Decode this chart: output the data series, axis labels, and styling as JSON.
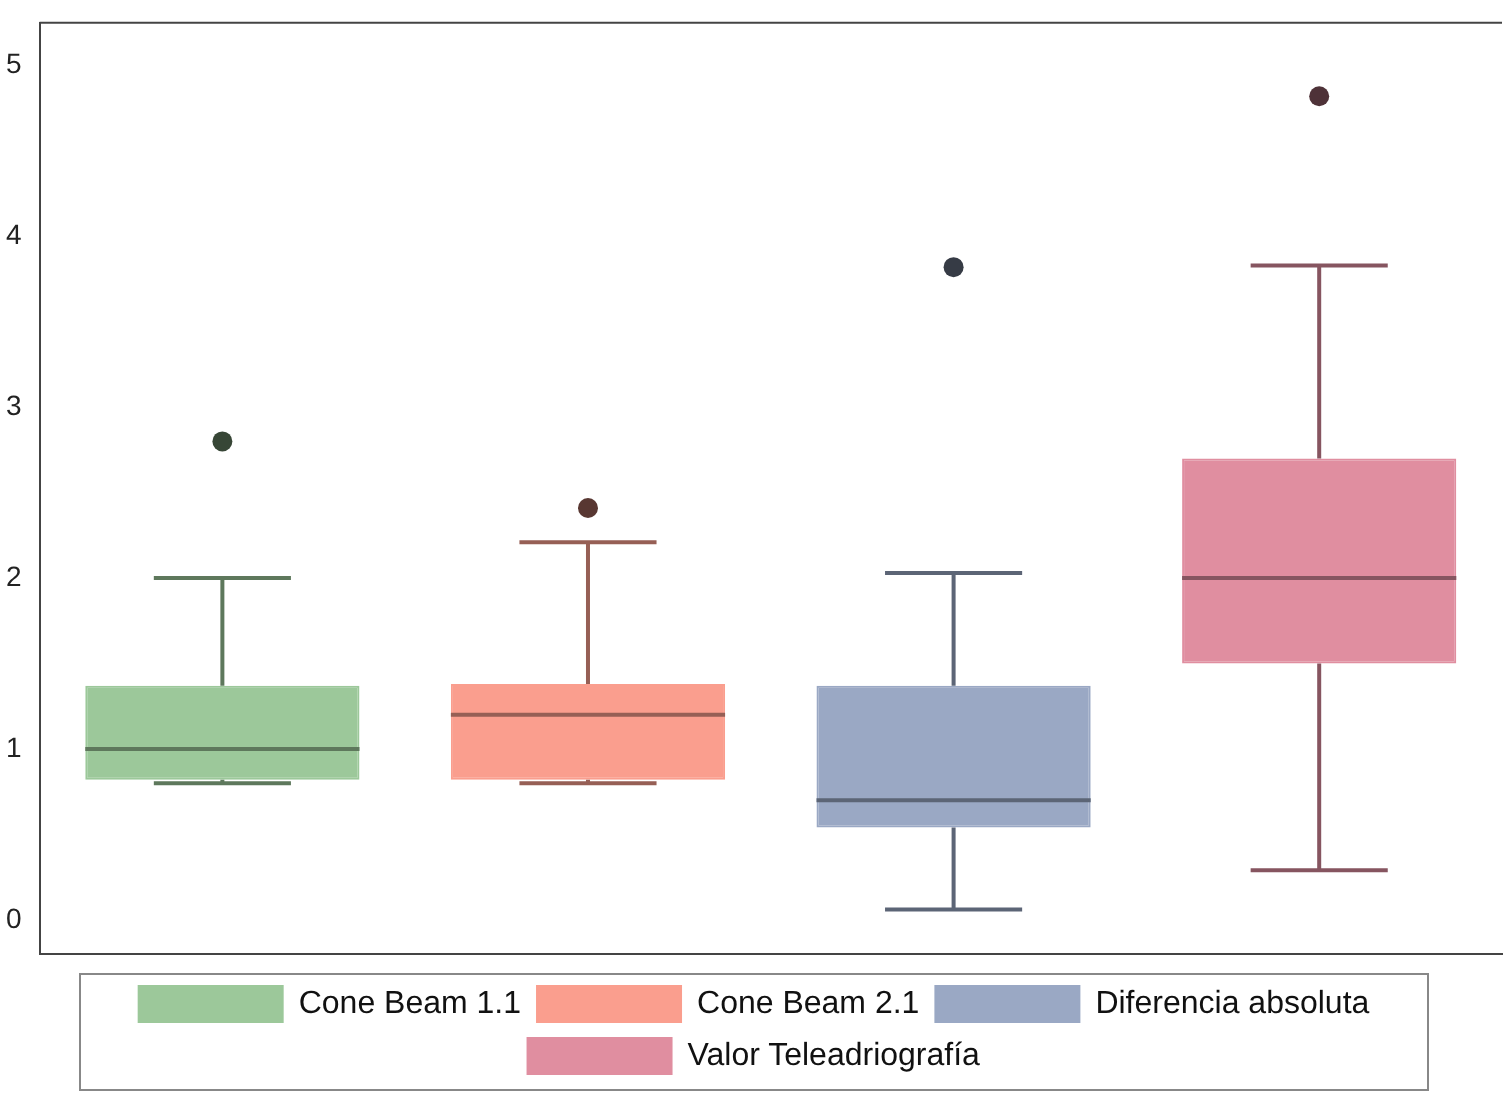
{
  "chart_data": {
    "type": "box",
    "categories": [
      null,
      null,
      null,
      null
    ],
    "ylim": [
      -0.2,
      5.25
    ],
    "yticks": [
      0,
      1,
      2,
      3,
      4,
      5
    ],
    "grid": false,
    "legend": "bottom",
    "series": [
      {
        "name": "Cone Beam 1.1",
        "color": "#9cc89a",
        "boxes": [
          {
            "low": 0.8,
            "q1": 0.82,
            "median": 1.0,
            "q3": 1.37,
            "high": 2.0,
            "outliers": [
              2.8
            ]
          },
          null,
          null,
          null
        ]
      },
      {
        "name": "Cone Beam 2.1",
        "color": "#fa9e8e",
        "boxes": [
          null,
          {
            "low": 0.8,
            "q1": 0.82,
            "median": 1.2,
            "q3": 1.38,
            "high": 2.21,
            "outliers": [
              2.41
            ]
          },
          null,
          null
        ]
      },
      {
        "name": "Diferencia absoluta",
        "color": "#9aa8c4",
        "boxes": [
          null,
          null,
          {
            "low": 0.06,
            "q1": 0.54,
            "median": 0.7,
            "q3": 1.37,
            "high": 2.03,
            "outliers": [
              3.82
            ]
          },
          null
        ]
      },
      {
        "name": "Valor Teleadriografía",
        "color": "#e08ea0",
        "boxes": [
          null,
          null,
          null,
          {
            "low": 0.29,
            "q1": 1.5,
            "median": 2.0,
            "q3": 2.7,
            "high": 3.83,
            "outliers": [
              4.82
            ]
          }
        ]
      }
    ]
  }
}
